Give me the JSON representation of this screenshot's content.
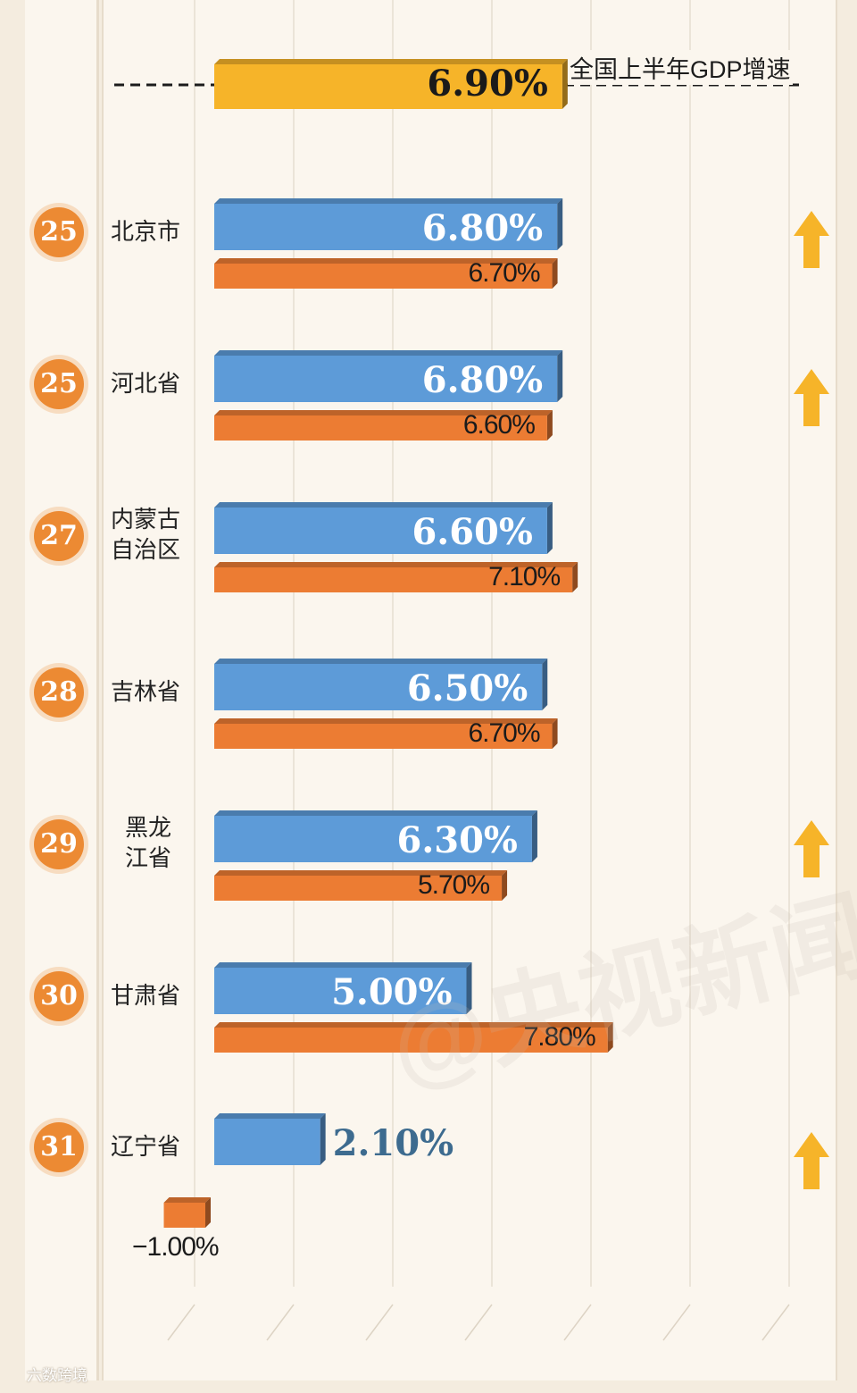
{
  "national": {
    "label": "全国上半年GDP增速",
    "value": 6.9,
    "value_label": "6.90%"
  },
  "chart_data": {
    "type": "bar",
    "orientation": "horizontal",
    "categories": [
      "北京市",
      "河北省",
      "内蒙古\n自治区",
      "吉林省",
      "黑龙\n江省",
      "甘肃省",
      "辽宁省"
    ],
    "ranks": [
      "25",
      "25",
      "27",
      "28",
      "29",
      "30",
      "31"
    ],
    "series": [
      {
        "values": [
          6.8,
          6.8,
          6.6,
          6.5,
          6.3,
          5.0,
          2.1
        ],
        "value_labels": [
          "6.80%",
          "6.80%",
          "6.60%",
          "6.50%",
          "6.30%",
          "5.00%",
          "2.10%"
        ]
      },
      {
        "values": [
          6.7,
          6.6,
          7.1,
          6.7,
          5.7,
          7.8,
          -1.0
        ],
        "value_labels": [
          "6.70%",
          "6.60%",
          "7.10%",
          "6.70%",
          "5.70%",
          "7.80%",
          "−1.00%"
        ]
      }
    ],
    "reference_line": {
      "value": 6.9,
      "label": "全国上半年GDP增速"
    },
    "up_arrows": [
      true,
      true,
      false,
      false,
      true,
      false,
      true
    ],
    "colors": {
      "primary": "#5d9bd8",
      "secondary": "#ec7c33",
      "reference": "#f6b429",
      "arrow": "#f6b429",
      "badge": "#ec8a33"
    }
  },
  "watermark": "六数跨境"
}
